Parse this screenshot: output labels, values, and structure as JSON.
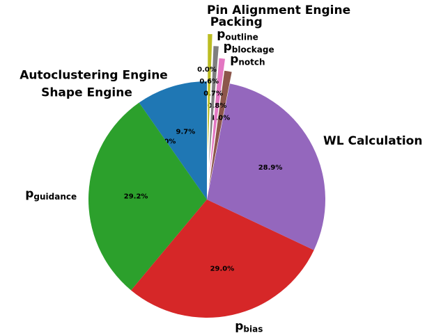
{
  "chart_data": {
    "type": "pie",
    "categories": [
      "Autoclustering Engine",
      "Shape Engine",
      [
        "p",
        "guidance"
      ],
      [
        "p",
        "bias"
      ],
      "WL Calculation",
      [
        "p",
        "notch"
      ],
      [
        "p",
        "blockage"
      ],
      [
        "p",
        "outline"
      ],
      "Packing",
      "Pin Alignment Engine"
    ],
    "values": [
      9.7,
      0.0,
      29.2,
      29.0,
      28.9,
      1.0,
      0.8,
      0.7,
      0.6,
      0.0
    ],
    "value_labels": [
      "9.7%",
      "0.0%",
      "29.2%",
      "29.0%",
      "28.9%",
      "1.0%",
      "0.8%",
      "0.7%",
      "0.6%",
      "0.0%"
    ],
    "colors": [
      "#1f77b4",
      "#ff7f0e",
      "#2ca02c",
      "#d62728",
      "#9467bd",
      "#8c564b",
      "#e377c2",
      "#7f7f7f",
      "#bcbd22",
      "#17becf"
    ],
    "explode": [
      0,
      0,
      0,
      0,
      0,
      0.1,
      0.2,
      0.3,
      0.4,
      0.5
    ],
    "startangle": 90
  }
}
